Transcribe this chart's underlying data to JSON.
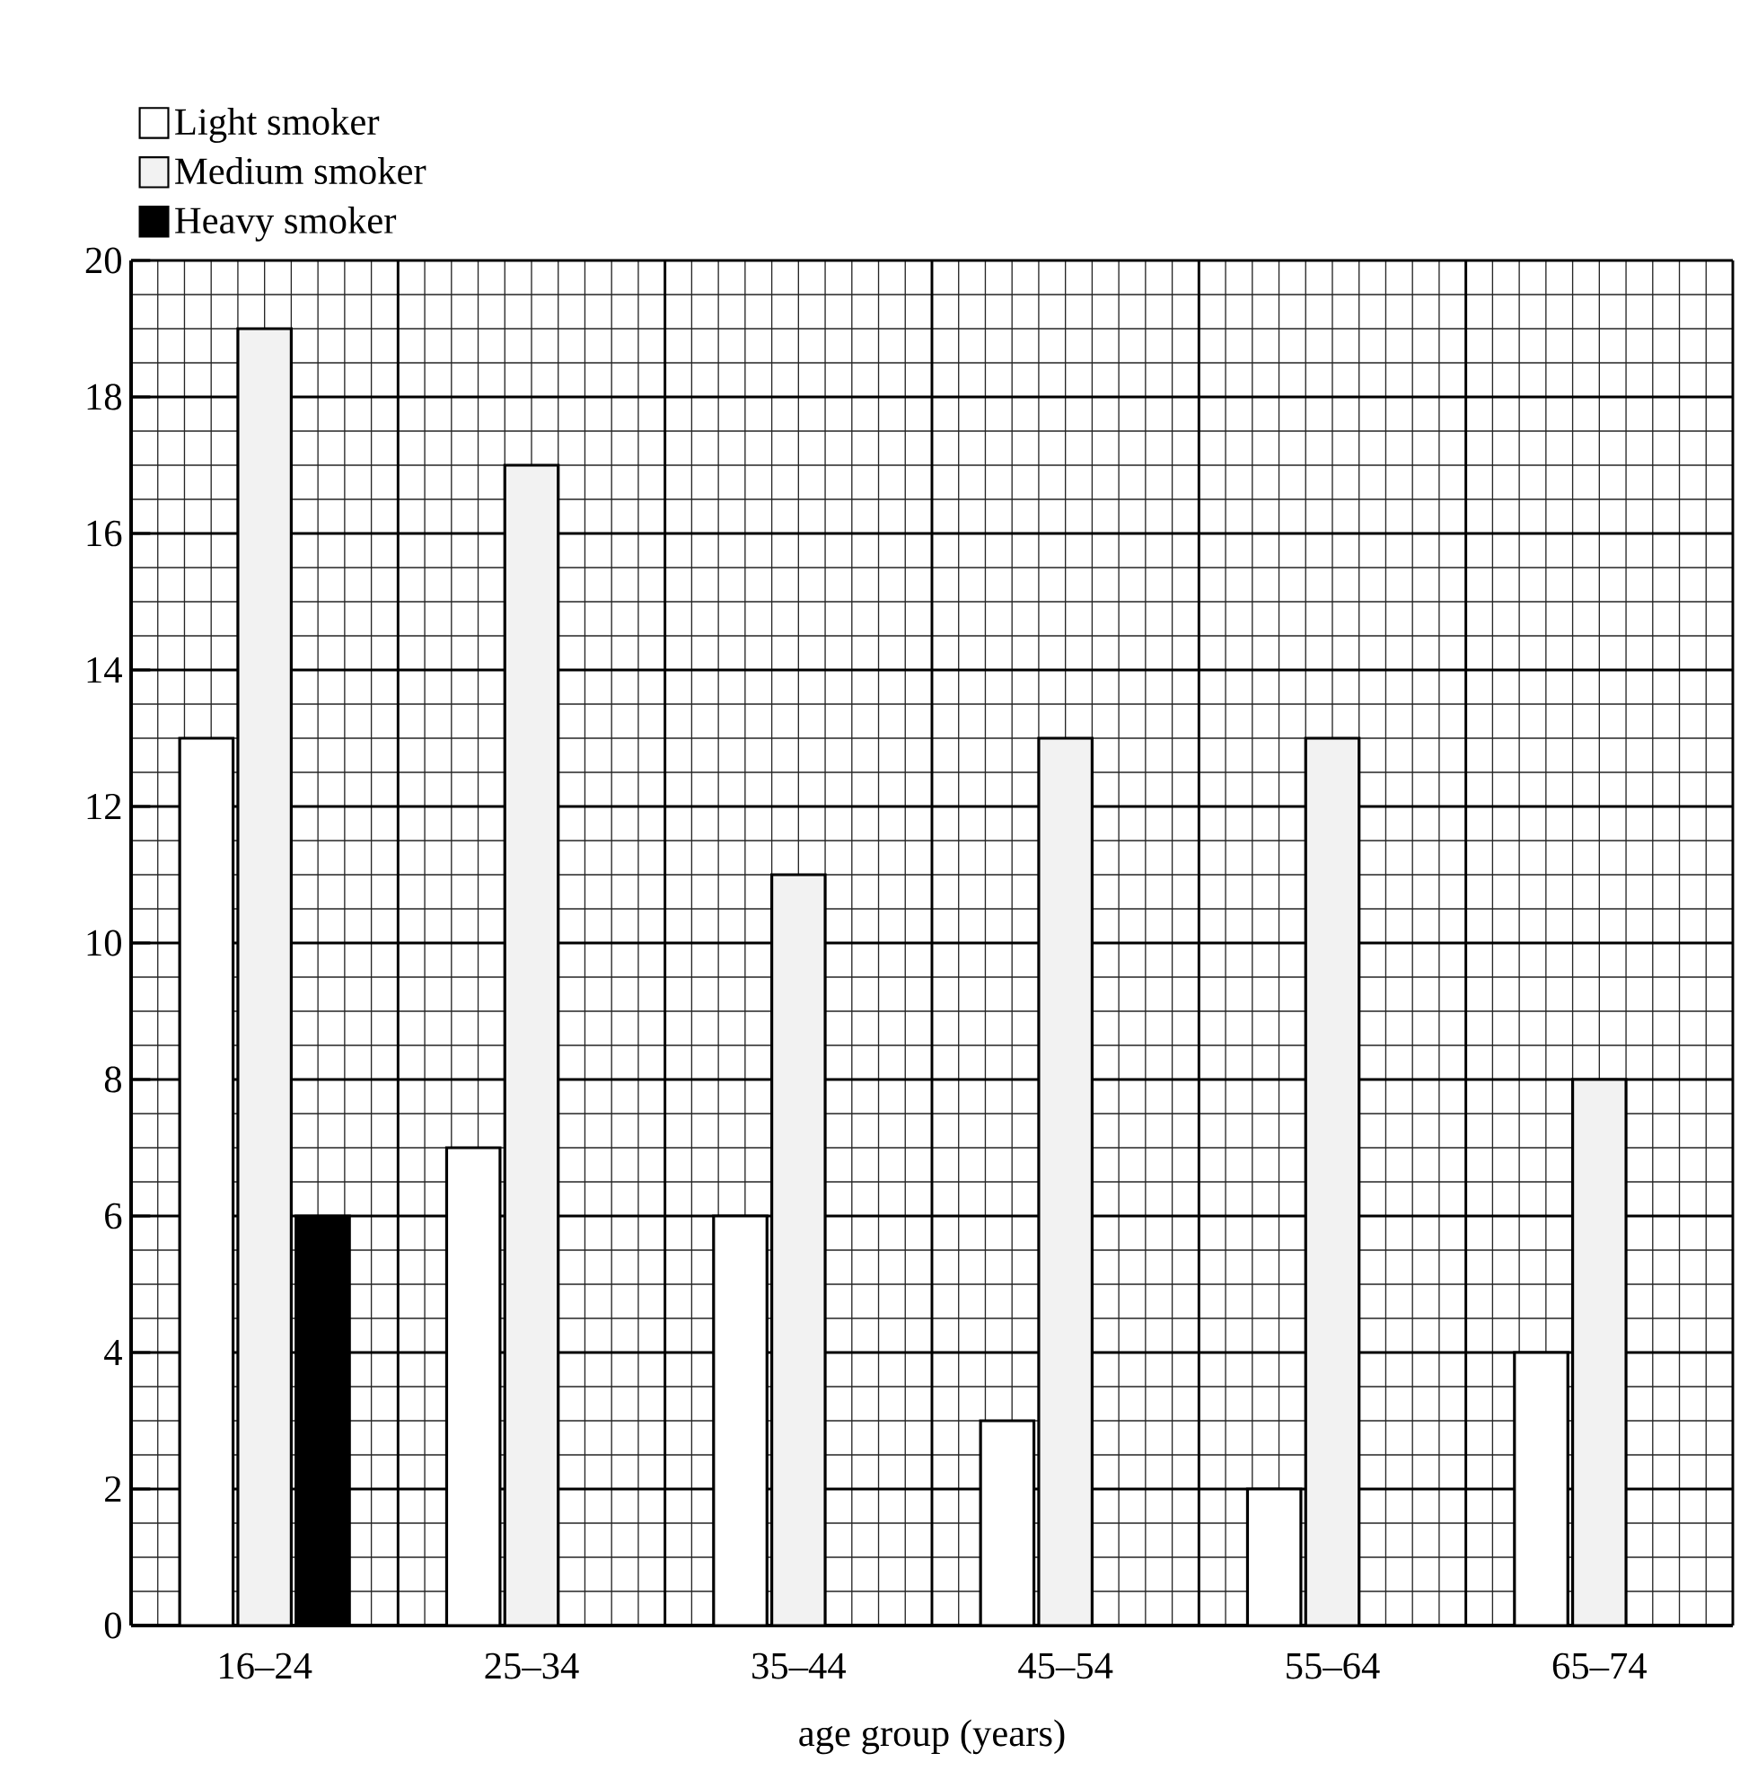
{
  "chart_data": {
    "type": "bar",
    "xlabel": "age group (years)",
    "categories": [
      "16–24",
      "25–34",
      "35–44",
      "45–54",
      "55–64",
      "65–74"
    ],
    "series": [
      {
        "name": "Light smoker",
        "color": "#ffffff",
        "values": [
          13,
          7,
          6,
          3,
          2,
          4
        ]
      },
      {
        "name": "Medium smoker",
        "color": "#f2f2f2",
        "values": [
          19,
          17,
          11,
          13,
          13,
          8
        ]
      },
      {
        "name": "Heavy smoker",
        "color": "#000000",
        "values": [
          6,
          null,
          null,
          null,
          null,
          null
        ]
      }
    ],
    "ylim": [
      0,
      20
    ],
    "yticks": [
      0,
      2,
      4,
      6,
      8,
      10,
      12,
      14,
      16,
      18,
      20
    ],
    "grid": true,
    "legend": "top left"
  }
}
